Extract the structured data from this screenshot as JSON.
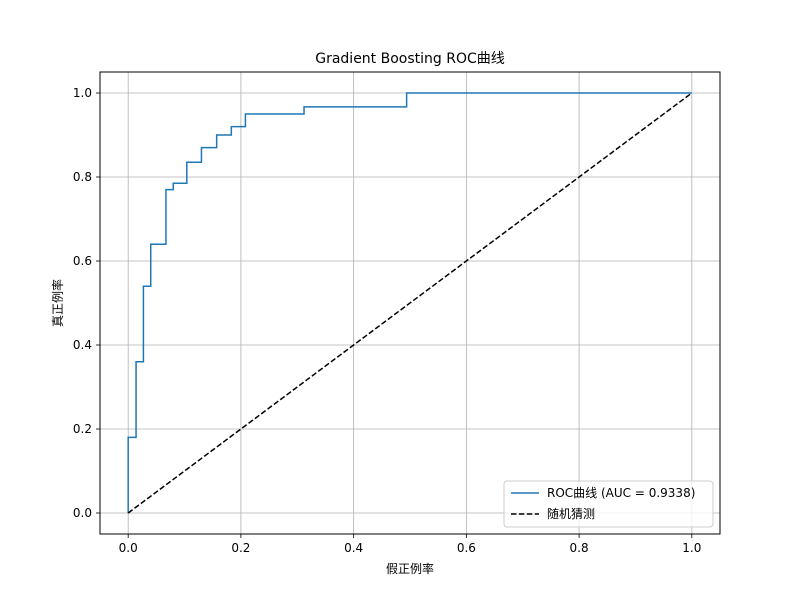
{
  "chart_data": {
    "type": "line",
    "title": "Gradient Boosting ROC曲线",
    "xlabel": "假正例率",
    "ylabel": "真正例率",
    "xlim": [
      -0.05,
      1.05
    ],
    "ylim": [
      -0.05,
      1.05
    ],
    "xticks": [
      0.0,
      0.2,
      0.4,
      0.6,
      0.8,
      1.0
    ],
    "yticks": [
      0.0,
      0.2,
      0.4,
      0.6,
      0.8,
      1.0
    ],
    "xtick_labels": [
      "0.0",
      "0.2",
      "0.4",
      "0.6",
      "0.8",
      "1.0"
    ],
    "ytick_labels": [
      "0.0",
      "0.2",
      "0.4",
      "0.6",
      "0.8",
      "1.0"
    ],
    "grid": true,
    "legend_position": "bottom-right",
    "series": [
      {
        "name": "ROC曲线 (AUC = 0.9338)",
        "color": "#1f77b4",
        "style": "solid",
        "x": [
          0.0,
          0.0,
          0.014,
          0.014,
          0.027,
          0.027,
          0.04,
          0.04,
          0.067,
          0.067,
          0.08,
          0.08,
          0.104,
          0.104,
          0.13,
          0.13,
          0.157,
          0.157,
          0.183,
          0.183,
          0.208,
          0.208,
          0.312,
          0.312,
          0.494,
          0.494,
          1.0
        ],
        "y": [
          0.0,
          0.18,
          0.18,
          0.36,
          0.36,
          0.54,
          0.54,
          0.64,
          0.64,
          0.77,
          0.77,
          0.785,
          0.785,
          0.835,
          0.835,
          0.87,
          0.87,
          0.9,
          0.9,
          0.92,
          0.92,
          0.95,
          0.95,
          0.967,
          0.967,
          1.0,
          1.0
        ]
      },
      {
        "name": "随机猜测",
        "color": "#000000",
        "style": "dashed",
        "x": [
          0.0,
          1.0
        ],
        "y": [
          0.0,
          1.0
        ]
      }
    ]
  }
}
